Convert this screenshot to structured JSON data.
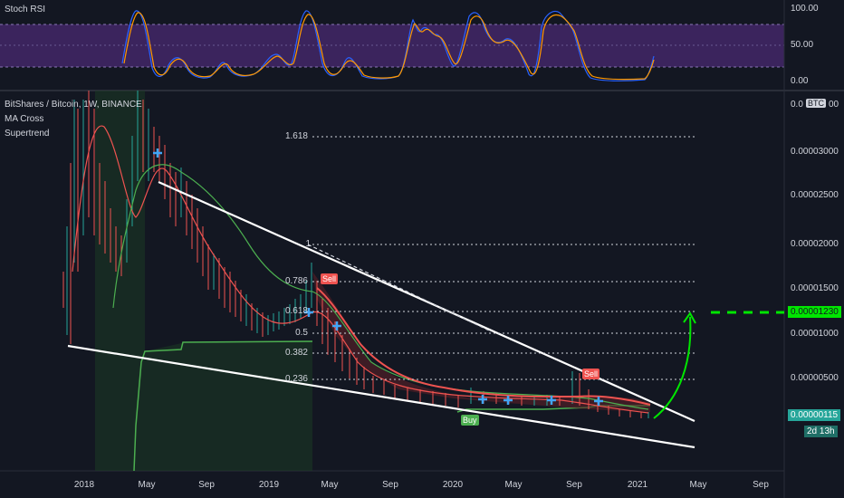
{
  "rsi_panel": {
    "title": "Stoch RSI",
    "axis_labels": [
      "100.00",
      "50.00",
      "0.00"
    ],
    "band_color": "#7e57c2"
  },
  "main_panel": {
    "symbol_title": "BitShares / Bitcoin, 1W, BINANCE",
    "indicators": [
      "MA Cross",
      "Supertrend"
    ],
    "currency_label": "BTC",
    "top_label": "0.0",
    "top_right": "00",
    "price_axis": [
      "0.00003000",
      "0.00002500",
      "0.00002000",
      "0.00001500",
      "0.00001000",
      "0.00000500"
    ],
    "target_price": "0.00001230",
    "current_price": "0.00000115",
    "countdown": "2d 13h",
    "fib_levels": [
      "1.618",
      "1",
      "0.786",
      "0.618",
      "0.5",
      "0.382",
      "0.236"
    ],
    "signals": {
      "sell": "Sell",
      "buy": "Buy"
    },
    "colors": {
      "up": "#26a69a",
      "down": "#ef5350",
      "target": "#00e600",
      "countdown_bg": "#26a69a"
    }
  },
  "time_axis": [
    "2018",
    "May",
    "Sep",
    "2019",
    "May",
    "Sep",
    "2020",
    "May",
    "Sep",
    "2021",
    "May",
    "Sep"
  ]
}
